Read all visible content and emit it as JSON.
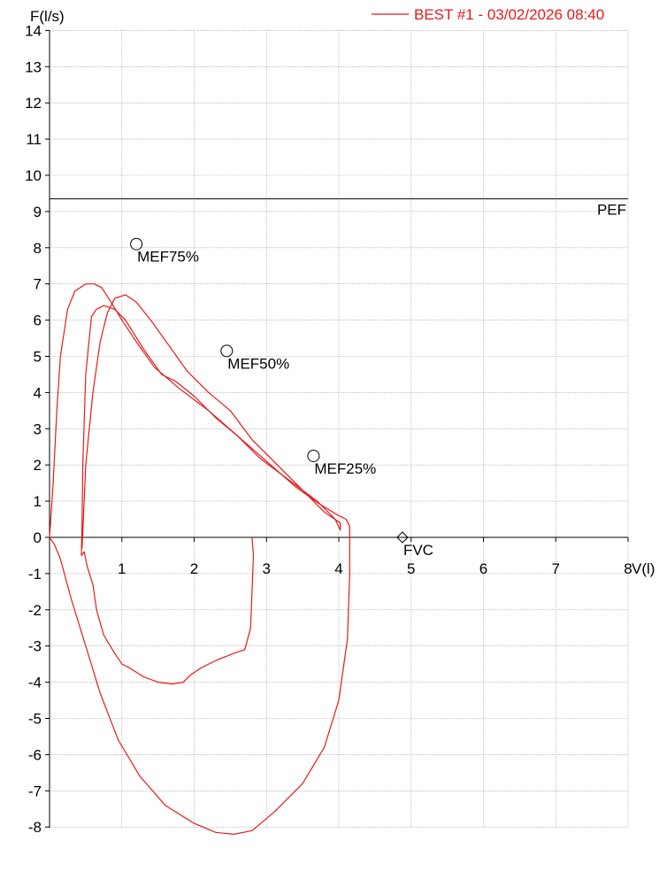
{
  "chart_data": {
    "type": "line",
    "title": "",
    "xlabel": "V(l)",
    "ylabel": "F(l/s)",
    "xlim": [
      0,
      8
    ],
    "ylim": [
      -8,
      14
    ],
    "x_ticks": [
      "1",
      "2",
      "3",
      "4",
      "5",
      "6",
      "7",
      "8"
    ],
    "y_ticks": [
      "14",
      "13",
      "12",
      "11",
      "10",
      "9",
      "8",
      "7",
      "6",
      "5",
      "4",
      "3",
      "2",
      "1",
      "0",
      "-1",
      "-2",
      "-3",
      "-4",
      "-5",
      "-6",
      "-7",
      "-8"
    ],
    "grid": true,
    "legend_position": "top-right",
    "colors": {
      "curve": "#e8191a",
      "axis": "#000000",
      "grid": "#999999"
    },
    "series": [
      {
        "name": "BEST #1 - 03/02/2026  08:40",
        "color": "#e8191a",
        "loops": [
          {
            "x": [
              0.0,
              0.05,
              0.1,
              0.15,
              0.25,
              0.35,
              0.5,
              0.62,
              0.72,
              0.85,
              1.0,
              1.2,
              1.45,
              1.8,
              2.2,
              2.6,
              3.0,
              3.4,
              3.75,
              4.0,
              4.1,
              4.15,
              4.15,
              4.12,
              4.0,
              3.8,
              3.5,
              3.1,
              2.8,
              2.55,
              2.3,
              2.0,
              1.6,
              1.25,
              0.95,
              0.7,
              0.5,
              0.3,
              0.15,
              0.07,
              0.0
            ],
            "y": [
              0.0,
              1.5,
              3.5,
              5.0,
              6.3,
              6.8,
              7.0,
              7.0,
              6.9,
              6.5,
              6.0,
              5.4,
              4.7,
              4.1,
              3.5,
              2.8,
              2.1,
              1.4,
              0.9,
              0.6,
              0.5,
              0.3,
              -1.0,
              -2.8,
              -4.5,
              -5.8,
              -6.8,
              -7.6,
              -8.1,
              -8.2,
              -8.15,
              -7.9,
              -7.4,
              -6.6,
              -5.6,
              -4.3,
              -3.0,
              -1.7,
              -0.6,
              -0.2,
              0.0
            ]
          },
          {
            "x": [
              0.45,
              0.5,
              0.6,
              0.7,
              0.8,
              0.9,
              1.05,
              1.2,
              1.4,
              1.65,
              1.9,
              2.2,
              2.5,
              2.8,
              3.1,
              3.5,
              3.8,
              4.02,
              4.02,
              3.95,
              3.7,
              3.3,
              2.9,
              2.6,
              2.3,
              2.0,
              1.75,
              1.55,
              1.3,
              1.05,
              0.9,
              0.75,
              0.65,
              0.58,
              0.5,
              0.46,
              0.45,
              0.44,
              0.48,
              0.52,
              0.6,
              0.65,
              0.75,
              0.9,
              1.0,
              1.1,
              1.3,
              1.5,
              1.7,
              1.85,
              1.95,
              2.1,
              2.3,
              2.55,
              2.7,
              2.78,
              2.8,
              2.82,
              2.8
            ],
            "y": [
              -0.3,
              2.0,
              4.0,
              5.4,
              6.2,
              6.6,
              6.7,
              6.5,
              6.0,
              5.3,
              4.6,
              4.0,
              3.5,
              2.7,
              2.1,
              1.3,
              0.7,
              0.4,
              0.2,
              0.5,
              1.0,
              1.6,
              2.2,
              2.8,
              3.3,
              3.9,
              4.3,
              4.5,
              5.2,
              6.0,
              6.3,
              6.4,
              6.3,
              6.1,
              4.5,
              2.0,
              0.5,
              -0.5,
              -0.4,
              -0.8,
              -1.3,
              -2.0,
              -2.7,
              -3.2,
              -3.5,
              -3.6,
              -3.85,
              -4.0,
              -4.05,
              -4.0,
              -3.8,
              -3.6,
              -3.4,
              -3.2,
              -3.1,
              -2.5,
              -1.5,
              -0.5,
              0.0
            ]
          }
        ]
      }
    ],
    "annotations": [
      {
        "label": "PEF",
        "y": 9.35,
        "type": "hline"
      },
      {
        "label": "MEF75%",
        "x": 1.2,
        "y": 8.1,
        "marker": "circle"
      },
      {
        "label": "MEF50%",
        "x": 2.45,
        "y": 5.15,
        "marker": "circle"
      },
      {
        "label": "MEF25%",
        "x": 3.65,
        "y": 2.25,
        "marker": "circle"
      },
      {
        "label": "FVC",
        "x": 4.88,
        "y": 0.0,
        "marker": "diamond"
      }
    ]
  }
}
